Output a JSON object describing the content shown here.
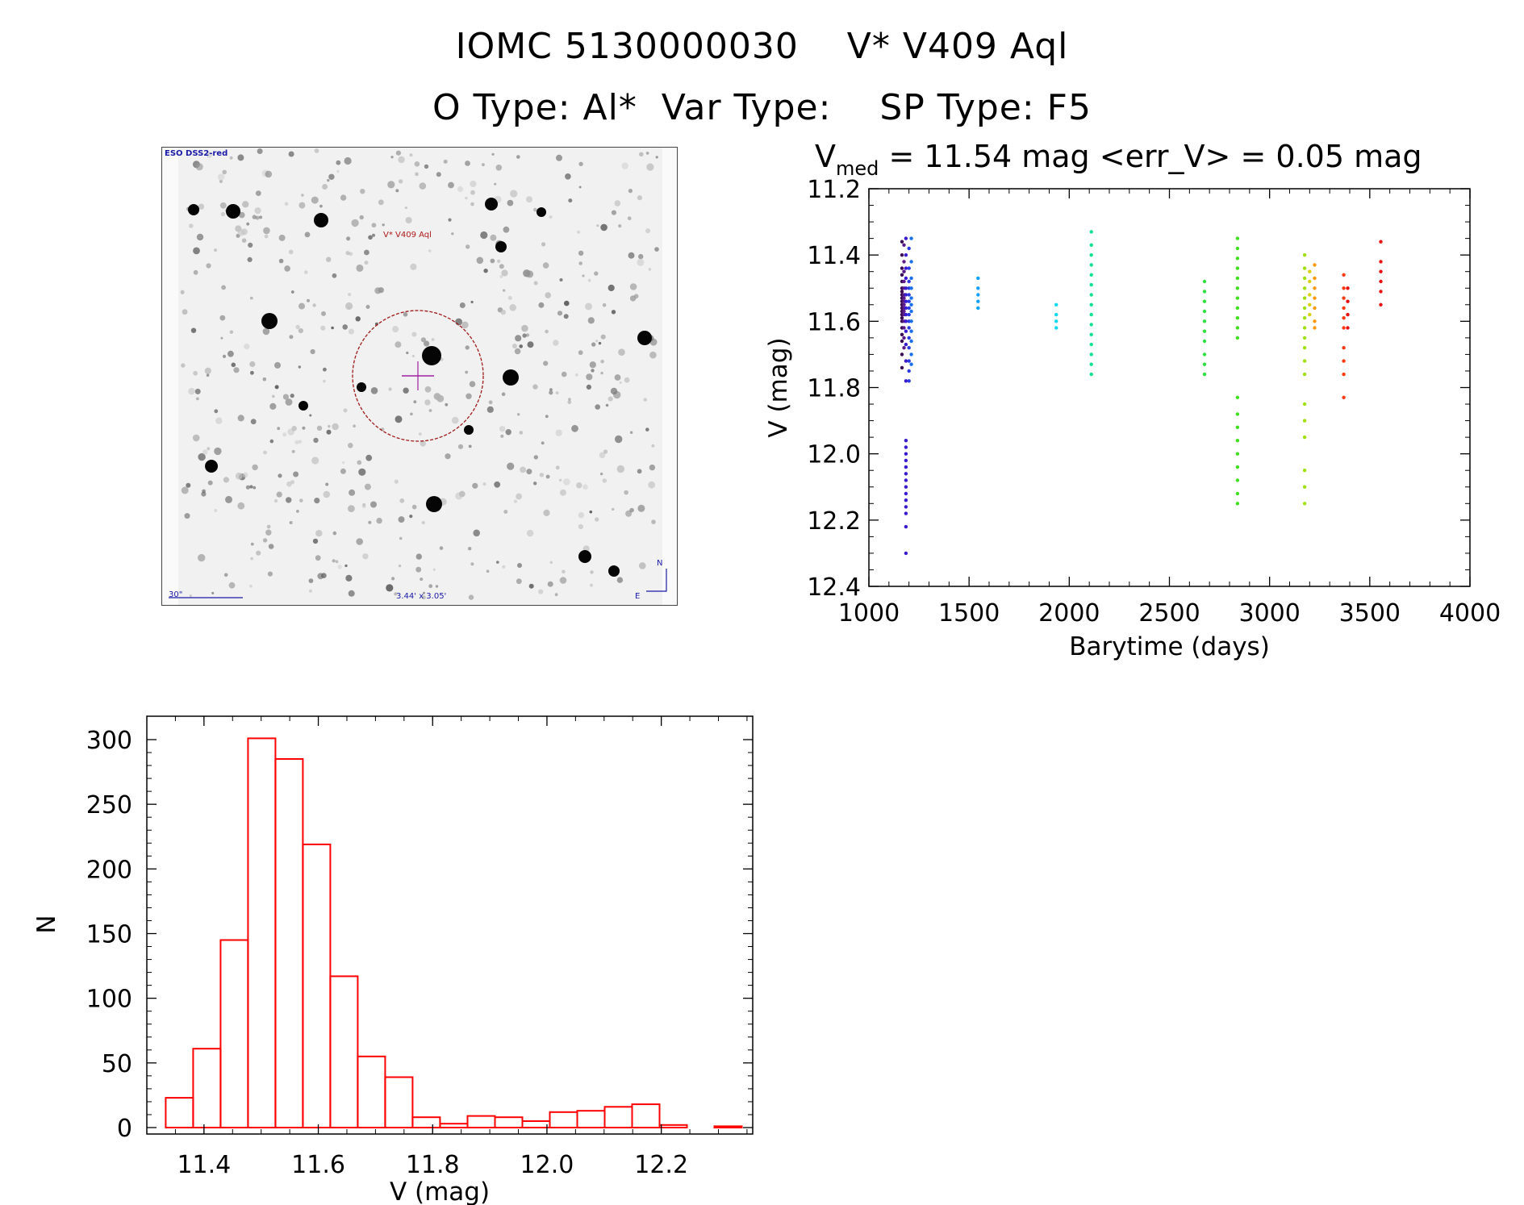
{
  "header": {
    "line1": "IOMC 5130000030    V* V409 Aql",
    "line2": "O Type: Al*  Var Type:    SP Type: F5"
  },
  "finder_chart": {
    "survey_label": "ESO DSS2-red",
    "object_label": "V* V409 Aql",
    "scale_label": "30\"",
    "fov_label": "3.44' x 3.05'",
    "north_label": "N",
    "east_label": "E",
    "colors": {
      "survey": "#1a1aa8",
      "object": "#b01818",
      "circle": "#a01a1a",
      "cross": "#a020a0"
    }
  },
  "chart_data": [
    {
      "type": "scatter",
      "title_main": "V",
      "title_sub": "med",
      "title_rest": " = 11.54 mag <err_V> = 0.05 mag",
      "xlabel": "Barytime (days)",
      "ylabel": "V (mag)",
      "xlim": [
        1000,
        4000
      ],
      "ylim": [
        12.4,
        11.2
      ],
      "y_inverted": true,
      "xticks": [
        1000,
        1500,
        2000,
        2500,
        3000,
        3500,
        4000
      ],
      "yticks": [
        11.2,
        11.4,
        11.6,
        11.8,
        12.0,
        12.2,
        12.4
      ],
      "color_scale": "rainbow by time (purple early -> red late)",
      "series": [
        {
          "x": 1165,
          "y": [
            11.36,
            11.4,
            11.44,
            11.46,
            11.48,
            11.5,
            11.51,
            11.52,
            11.53,
            11.54,
            11.55,
            11.56,
            11.57,
            11.58,
            11.59,
            11.6,
            11.62,
            11.64,
            11.66,
            11.7,
            11.74
          ],
          "color": "#3a0a55"
        },
        {
          "x": 1175,
          "y": [
            11.37,
            11.42,
            11.45,
            11.48,
            11.5,
            11.52,
            11.53,
            11.54,
            11.55,
            11.56,
            11.57,
            11.58,
            11.6,
            11.62,
            11.65,
            11.68
          ],
          "color": "#5a1a8a"
        },
        {
          "x": 1185,
          "y": [
            11.35,
            11.4,
            11.44,
            11.47,
            11.5,
            11.52,
            11.54,
            11.56,
            11.58,
            11.6,
            11.63,
            11.67,
            11.72,
            11.78,
            11.96,
            11.98,
            12.0,
            12.02,
            12.04,
            12.06,
            12.08,
            12.1,
            12.12,
            12.14,
            12.16,
            12.18,
            12.22,
            12.3
          ],
          "color": "#3a1ad0"
        },
        {
          "x": 1200,
          "y": [
            11.38,
            11.44,
            11.48,
            11.5,
            11.52,
            11.54,
            11.56,
            11.58,
            11.6,
            11.62,
            11.65,
            11.68,
            11.72,
            11.75,
            11.78
          ],
          "color": "#2a3ae0"
        },
        {
          "x": 1212,
          "y": [
            11.35,
            11.42,
            11.47,
            11.5,
            11.53,
            11.55,
            11.57,
            11.6,
            11.63,
            11.66,
            11.7,
            11.73
          ],
          "color": "#1a70e8"
        },
        {
          "x": 1545,
          "y": [
            11.47,
            11.5,
            11.52,
            11.54,
            11.56
          ],
          "color": "#10a0ff"
        },
        {
          "x": 1935,
          "y": [
            11.55,
            11.58,
            11.6,
            11.62
          ],
          "color": "#10d8f0"
        },
        {
          "x": 2110,
          "y": [
            11.33,
            11.37,
            11.4,
            11.43,
            11.46,
            11.49,
            11.52,
            11.55,
            11.58,
            11.61,
            11.64,
            11.67,
            11.7,
            11.73,
            11.76
          ],
          "color": "#10e090"
        },
        {
          "x": 2675,
          "y": [
            11.48,
            11.51,
            11.54,
            11.57,
            11.6,
            11.63,
            11.66,
            11.7,
            11.73,
            11.76
          ],
          "color": "#30e040"
        },
        {
          "x": 2840,
          "y": [
            11.35,
            11.38,
            11.41,
            11.44,
            11.47,
            11.5,
            11.53,
            11.56,
            11.59,
            11.62,
            11.65,
            11.83,
            11.88,
            11.92,
            11.96,
            12.0,
            12.04,
            12.08,
            12.12,
            12.15
          ],
          "color": "#40e020"
        },
        {
          "x": 3175,
          "y": [
            11.4,
            11.44,
            11.47,
            11.5,
            11.53,
            11.56,
            11.59,
            11.62,
            11.65,
            11.68,
            11.72,
            11.76,
            11.85,
            11.9,
            11.95,
            12.05,
            12.1,
            12.15
          ],
          "color": "#a0e010"
        },
        {
          "x": 3200,
          "y": [
            11.45,
            11.48,
            11.52,
            11.55,
            11.58
          ],
          "color": "#d8d010"
        },
        {
          "x": 3225,
          "y": [
            11.43,
            11.47,
            11.5,
            11.53,
            11.56,
            11.6,
            11.62
          ],
          "color": "#ff9a10"
        },
        {
          "x": 3370,
          "y": [
            11.46,
            11.5,
            11.53,
            11.56,
            11.59,
            11.62,
            11.68,
            11.72,
            11.76,
            11.83
          ],
          "color": "#ff3a10"
        },
        {
          "x": 3390,
          "y": [
            11.5,
            11.54,
            11.58,
            11.62
          ],
          "color": "#e81010"
        },
        {
          "x": 3555,
          "y": [
            11.36,
            11.42,
            11.45,
            11.48,
            11.51,
            11.55
          ],
          "color": "#e81010"
        }
      ]
    },
    {
      "type": "bar",
      "subtype": "histogram",
      "xlabel": "V (mag)",
      "ylabel": "N",
      "xlim": [
        11.3,
        12.36
      ],
      "ylim": [
        0,
        310
      ],
      "xticks": [
        11.4,
        11.6,
        11.8,
        12.0,
        12.2
      ],
      "yticks": [
        0,
        50,
        100,
        150,
        200,
        250,
        300
      ],
      "bin_width": 0.048,
      "bin_starts": [
        11.333,
        11.381,
        11.429,
        11.477,
        11.525,
        11.573,
        11.621,
        11.669,
        11.717,
        11.765,
        11.813,
        11.861,
        11.909,
        11.957,
        12.005,
        12.053,
        12.101,
        12.149,
        12.197,
        12.245,
        12.293
      ],
      "values": [
        23,
        61,
        145,
        301,
        285,
        219,
        117,
        55,
        39,
        8,
        3,
        9,
        8,
        5,
        12,
        13,
        16,
        18,
        2,
        0,
        1
      ],
      "color": "#ff0000"
    }
  ]
}
